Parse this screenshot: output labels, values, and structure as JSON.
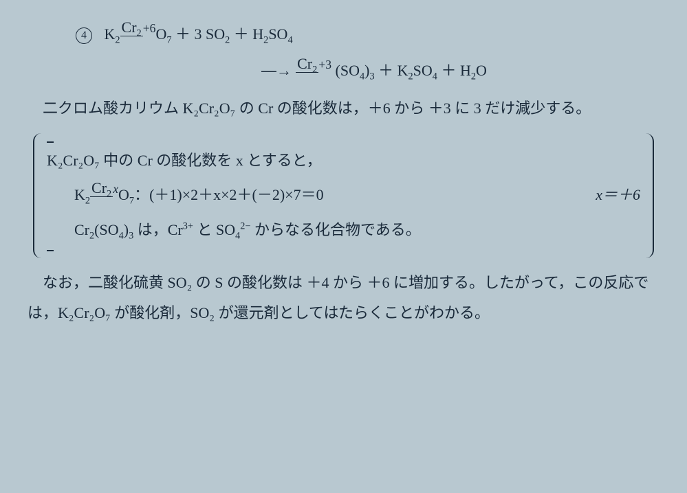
{
  "item_number": "4",
  "eq_left_1": "K",
  "eq_left_2": "2",
  "eq_left_cr": "Cr",
  "eq_left_cr_sub": "2",
  "eq_left_ox_top": "+6",
  "eq_left_3": "O",
  "eq_left_4": "7",
  "eq_plus1": " ＋ 3 SO",
  "eq_so2_sub": "2",
  "eq_plus2": " ＋ H",
  "eq_h2": "2",
  "eq_so4": "SO",
  "eq_so4_sub": "4",
  "arrow": "―→ ",
  "prod_cr": "Cr",
  "prod_cr_sub": "2",
  "prod_cr_ox": "+3",
  "prod_so4": " (SO",
  "prod_so4_sub1": "4",
  "prod_so4_close": ")",
  "prod_so4_sub2": "3",
  "prod_plus1": " ＋ K",
  "prod_k2": "2",
  "prod_kso4": "SO",
  "prod_kso4_sub": "4",
  "prod_plus2": " ＋ H",
  "prod_h2": "2",
  "prod_o": "O",
  "para1": "二クロム酸カリウム K₂Cr₂O₇ の Cr の酸化数は，＋6 から ＋3 に 3 だけ減少する。",
  "box_line1": "K₂Cr₂O₇ 中の Cr の酸化数を x とすると，",
  "box_eq_pre": "K",
  "box_eq_k2": "2",
  "box_eq_cr": "Cr",
  "box_eq_cr2": "2",
  "box_eq_crbot": "x",
  "box_eq_o": "O",
  "box_eq_o7": "7",
  "box_eq_rest": "：(＋1)×2＋x×2＋(－2)×7＝0",
  "box_eq_ans": "x＝＋6",
  "box_line3_a": "Cr",
  "box_line3_a2": "2",
  "box_line3_b": "(SO",
  "box_line3_b4": "4",
  "box_line3_c": ")",
  "box_line3_c3": "3",
  "box_line3_d": " は，Cr",
  "box_line3_d3p": "3+",
  "box_line3_e": " と SO",
  "box_line3_e4": "4",
  "box_line3_e2m": "2−",
  "box_line3_f": " からなる化合物である。",
  "para2": "なお，二酸化硫黄 SO₂ の S の酸化数は ＋4 から ＋6 に増加する。したがって，この反応では，K₂Cr₂O₇ が酸化剤，SO₂ が還元剤としてはたらくことがわかる。"
}
